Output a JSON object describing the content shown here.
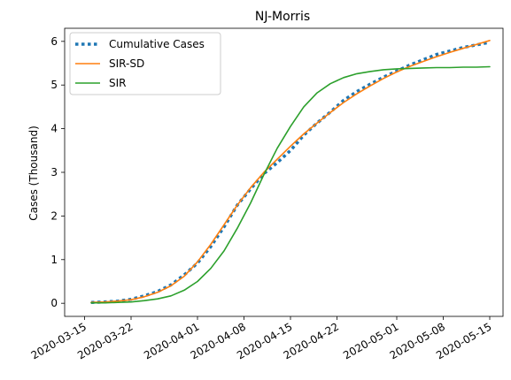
{
  "chart_data": {
    "type": "line",
    "title": "NJ-Morris",
    "xlabel": "",
    "ylabel": "Cases (Thousand)",
    "x_axis_type": "date",
    "xlim": [
      "2020-03-12",
      "2020-05-17"
    ],
    "ylim": [
      -0.3,
      6.3
    ],
    "x_ticks": [
      "2020-03-15",
      "2020-03-22",
      "2020-04-01",
      "2020-04-08",
      "2020-04-15",
      "2020-04-22",
      "2020-05-01",
      "2020-05-08",
      "2020-05-15"
    ],
    "y_ticks": [
      0,
      1,
      2,
      3,
      4,
      5,
      6
    ],
    "grid": false,
    "legend_placement": "top-left",
    "series": [
      {
        "name": "Cumulative Cases",
        "color": "#1f77b4",
        "style": "dotted",
        "x": [
          "2020-03-16",
          "2020-03-18",
          "2020-03-20",
          "2020-03-22",
          "2020-03-24",
          "2020-03-26",
          "2020-03-28",
          "2020-03-30",
          "2020-04-01",
          "2020-04-03",
          "2020-04-05",
          "2020-04-07",
          "2020-04-09",
          "2020-04-11",
          "2020-04-13",
          "2020-04-15",
          "2020-04-17",
          "2020-04-19",
          "2020-04-21",
          "2020-04-23",
          "2020-04-25",
          "2020-04-27",
          "2020-04-29",
          "2020-05-01",
          "2020-05-03",
          "2020-05-05",
          "2020-05-07",
          "2020-05-09",
          "2020-05-11",
          "2020-05-13",
          "2020-05-15"
        ],
        "y": [
          0.02,
          0.03,
          0.05,
          0.09,
          0.17,
          0.27,
          0.42,
          0.65,
          0.92,
          1.3,
          1.75,
          2.25,
          2.62,
          2.97,
          3.22,
          3.5,
          3.85,
          4.13,
          4.38,
          4.65,
          4.85,
          5.02,
          5.18,
          5.32,
          5.46,
          5.58,
          5.7,
          5.78,
          5.86,
          5.92,
          5.98
        ]
      },
      {
        "name": "SIR-SD",
        "color": "#ff7f0e",
        "style": "solid",
        "x": [
          "2020-03-16",
          "2020-03-18",
          "2020-03-20",
          "2020-03-22",
          "2020-03-24",
          "2020-03-26",
          "2020-03-28",
          "2020-03-30",
          "2020-04-01",
          "2020-04-03",
          "2020-04-05",
          "2020-04-07",
          "2020-04-09",
          "2020-04-11",
          "2020-04-13",
          "2020-04-15",
          "2020-04-17",
          "2020-04-19",
          "2020-04-21",
          "2020-04-23",
          "2020-04-25",
          "2020-04-27",
          "2020-04-29",
          "2020-05-01",
          "2020-05-03",
          "2020-05-05",
          "2020-05-07",
          "2020-05-09",
          "2020-05-11",
          "2020-05-13",
          "2020-05-15"
        ],
        "y": [
          0.02,
          0.03,
          0.05,
          0.08,
          0.15,
          0.25,
          0.4,
          0.62,
          0.95,
          1.35,
          1.8,
          2.25,
          2.65,
          3.0,
          3.3,
          3.6,
          3.88,
          4.13,
          4.37,
          4.6,
          4.8,
          4.98,
          5.15,
          5.3,
          5.43,
          5.54,
          5.65,
          5.75,
          5.84,
          5.93,
          6.02
        ]
      },
      {
        "name": "SIR",
        "color": "#2ca02c",
        "style": "solid",
        "x": [
          "2020-03-16",
          "2020-03-18",
          "2020-03-20",
          "2020-03-22",
          "2020-03-24",
          "2020-03-26",
          "2020-03-28",
          "2020-03-30",
          "2020-04-01",
          "2020-04-03",
          "2020-04-05",
          "2020-04-07",
          "2020-04-09",
          "2020-04-11",
          "2020-04-13",
          "2020-04-15",
          "2020-04-17",
          "2020-04-19",
          "2020-04-21",
          "2020-04-23",
          "2020-04-25",
          "2020-04-27",
          "2020-04-29",
          "2020-05-01",
          "2020-05-03",
          "2020-05-05",
          "2020-05-07",
          "2020-05-09",
          "2020-05-11",
          "2020-05-13",
          "2020-05-15"
        ],
        "y": [
          0.01,
          0.01,
          0.02,
          0.03,
          0.06,
          0.1,
          0.17,
          0.3,
          0.5,
          0.8,
          1.2,
          1.72,
          2.3,
          2.95,
          3.55,
          4.05,
          4.5,
          4.82,
          5.03,
          5.17,
          5.26,
          5.31,
          5.35,
          5.37,
          5.38,
          5.39,
          5.4,
          5.4,
          5.41,
          5.41,
          5.42
        ]
      }
    ]
  }
}
